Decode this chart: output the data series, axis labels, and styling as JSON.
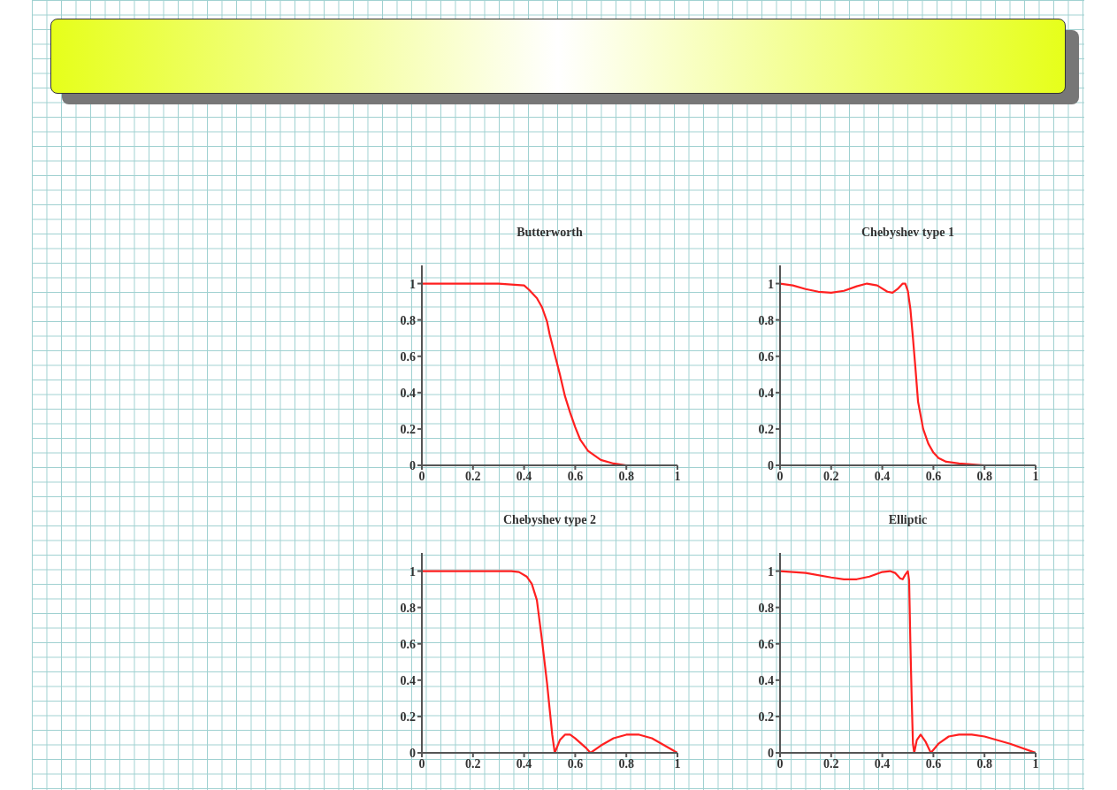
{
  "chart_data": [
    {
      "type": "line",
      "title": "Butterworth",
      "xlim": [
        0,
        1
      ],
      "ylim": [
        0,
        1.1
      ],
      "xticks": [
        0,
        0.2,
        0.4,
        0.6,
        0.8,
        1
      ],
      "yticks": [
        0,
        0.2,
        0.4,
        0.6,
        0.8,
        1
      ],
      "x": [
        0,
        0.1,
        0.2,
        0.3,
        0.35,
        0.4,
        0.42,
        0.45,
        0.47,
        0.49,
        0.5,
        0.52,
        0.54,
        0.56,
        0.58,
        0.6,
        0.62,
        0.65,
        0.7,
        0.75,
        0.8,
        0.9,
        1
      ],
      "series": [
        {
          "color": "#ff2020",
          "values": [
            1,
            1,
            1,
            1,
            0.995,
            0.99,
            0.965,
            0.92,
            0.87,
            0.79,
            0.72,
            0.61,
            0.5,
            0.38,
            0.29,
            0.21,
            0.14,
            0.08,
            0.03,
            0.01,
            0,
            0,
            0
          ]
        }
      ]
    },
    {
      "type": "line",
      "title": "Chebyshev type 1",
      "xlim": [
        0,
        1
      ],
      "ylim": [
        0,
        1.1
      ],
      "xticks": [
        0,
        0.2,
        0.4,
        0.6,
        0.8,
        1
      ],
      "yticks": [
        0,
        0.2,
        0.4,
        0.6,
        0.8,
        1
      ],
      "x": [
        0,
        0.05,
        0.1,
        0.15,
        0.2,
        0.25,
        0.3,
        0.34,
        0.38,
        0.42,
        0.44,
        0.46,
        0.48,
        0.49,
        0.5,
        0.51,
        0.52,
        0.53,
        0.54,
        0.56,
        0.58,
        0.6,
        0.62,
        0.65,
        0.7,
        0.8,
        0.9,
        1
      ],
      "series": [
        {
          "color": "#ff2020",
          "values": [
            1,
            0.99,
            0.97,
            0.955,
            0.95,
            0.96,
            0.985,
            1,
            0.99,
            0.955,
            0.95,
            0.97,
            1,
            1,
            0.96,
            0.86,
            0.7,
            0.53,
            0.35,
            0.2,
            0.12,
            0.07,
            0.04,
            0.02,
            0.01,
            0,
            0,
            0
          ]
        }
      ]
    },
    {
      "type": "line",
      "title": "Chebyshev type 2",
      "xlim": [
        0,
        1
      ],
      "ylim": [
        0,
        1.1
      ],
      "xticks": [
        0,
        0.2,
        0.4,
        0.6,
        0.8,
        1
      ],
      "yticks": [
        0,
        0.2,
        0.4,
        0.6,
        0.8,
        1
      ],
      "x": [
        0,
        0.2,
        0.35,
        0.38,
        0.41,
        0.43,
        0.45,
        0.47,
        0.49,
        0.51,
        0.52,
        0.54,
        0.56,
        0.58,
        0.6,
        0.64,
        0.66,
        0.7,
        0.75,
        0.8,
        0.85,
        0.9,
        0.95,
        1
      ],
      "series": [
        {
          "color": "#ff2020",
          "values": [
            1,
            1,
            1,
            0.995,
            0.97,
            0.93,
            0.84,
            0.62,
            0.38,
            0.1,
            0,
            0.07,
            0.1,
            0.1,
            0.08,
            0.03,
            0,
            0.04,
            0.08,
            0.1,
            0.1,
            0.08,
            0.04,
            0
          ]
        }
      ]
    },
    {
      "type": "line",
      "title": "Elliptic",
      "xlim": [
        0,
        1
      ],
      "ylim": [
        0,
        1.1
      ],
      "xticks": [
        0,
        0.2,
        0.4,
        0.6,
        0.8,
        1
      ],
      "yticks": [
        0,
        0.2,
        0.4,
        0.6,
        0.8,
        1
      ],
      "x": [
        0,
        0.1,
        0.2,
        0.25,
        0.3,
        0.35,
        0.4,
        0.43,
        0.45,
        0.47,
        0.48,
        0.49,
        0.5,
        0.505,
        0.51,
        0.515,
        0.52,
        0.525,
        0.535,
        0.55,
        0.57,
        0.59,
        0.62,
        0.66,
        0.7,
        0.75,
        0.8,
        0.9,
        1
      ],
      "series": [
        {
          "color": "#ff2020",
          "values": [
            1,
            0.99,
            0.965,
            0.955,
            0.955,
            0.97,
            0.995,
            1,
            0.99,
            0.96,
            0.955,
            0.98,
            1,
            0.95,
            0.6,
            0.3,
            0.05,
            0,
            0.07,
            0.1,
            0.06,
            0,
            0.05,
            0.09,
            0.1,
            0.1,
            0.09,
            0.05,
            0
          ]
        }
      ]
    }
  ]
}
